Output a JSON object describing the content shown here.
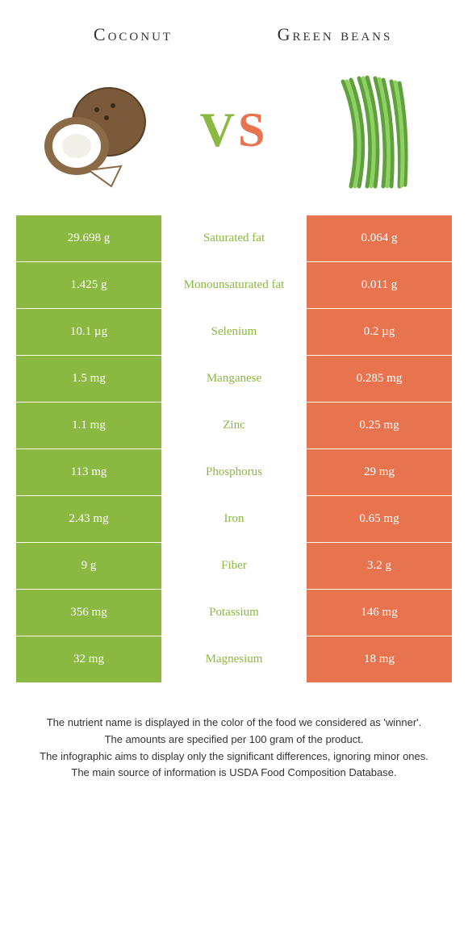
{
  "colors": {
    "left": "#8bb840",
    "right": "#e8744f",
    "text": "#333333",
    "bg": "#ffffff"
  },
  "foods": {
    "left": {
      "name": "Coconut"
    },
    "right": {
      "name": "Green beans"
    }
  },
  "vs": {
    "v": "V",
    "s": "S"
  },
  "rows": [
    {
      "nutrient": "Saturated fat",
      "left": "29.698 g",
      "right": "0.064 g",
      "winner": "left"
    },
    {
      "nutrient": "Monounsaturated fat",
      "left": "1.425 g",
      "right": "0.011 g",
      "winner": "left"
    },
    {
      "nutrient": "Selenium",
      "left": "10.1 µg",
      "right": "0.2 µg",
      "winner": "left"
    },
    {
      "nutrient": "Manganese",
      "left": "1.5 mg",
      "right": "0.285 mg",
      "winner": "left"
    },
    {
      "nutrient": "Zinc",
      "left": "1.1 mg",
      "right": "0.25 mg",
      "winner": "left"
    },
    {
      "nutrient": "Phosphorus",
      "left": "113 mg",
      "right": "29 mg",
      "winner": "left"
    },
    {
      "nutrient": "Iron",
      "left": "2.43 mg",
      "right": "0.65 mg",
      "winner": "left"
    },
    {
      "nutrient": "Fiber",
      "left": "9 g",
      "right": "3.2 g",
      "winner": "left"
    },
    {
      "nutrient": "Potassium",
      "left": "356 mg",
      "right": "146 mg",
      "winner": "left"
    },
    {
      "nutrient": "Magnesium",
      "left": "32 mg",
      "right": "18 mg",
      "winner": "left"
    }
  ],
  "footnotes": {
    "l1": "The nutrient name is displayed in the color of the food we considered as 'winner'.",
    "l2": "The amounts are specified per 100 gram of the product.",
    "l3": "The infographic aims to display only the significant differences, ignoring minor ones.",
    "l4": "The main source of information is USDA Food Composition Database."
  }
}
